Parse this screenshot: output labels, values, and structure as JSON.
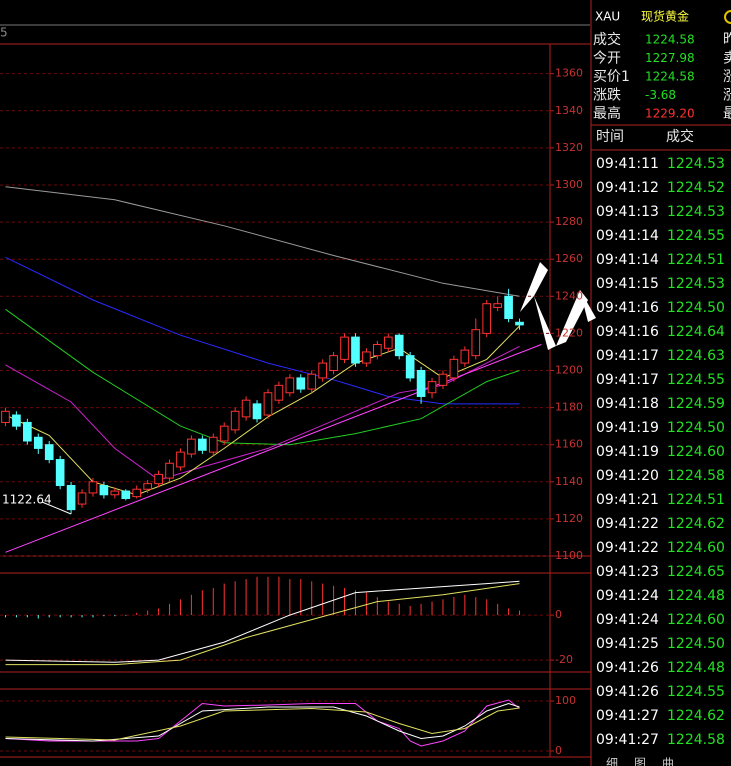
{
  "header": {
    "top_left": "5"
  },
  "chart_data": [
    {
      "type": "candlestick",
      "xlim": [
        -0.5,
        47.5
      ],
      "ylim": [
        1100,
        1376
      ],
      "yticks": [
        1100,
        1120,
        1140,
        1160,
        1180,
        1200,
        1220,
        1240,
        1260,
        1280,
        1300,
        1320,
        1340,
        1360
      ],
      "grid": true,
      "up_color": "#ff3232",
      "down_color": "#54ffff",
      "open": [
        1172,
        1176,
        1172,
        1164,
        1160,
        1152,
        1138,
        1128,
        1134,
        1138,
        1133,
        1135,
        1132,
        1136,
        1139,
        1142,
        1148,
        1155,
        1163,
        1156,
        1162,
        1168,
        1175,
        1182,
        1176,
        1184,
        1188,
        1196,
        1190,
        1196,
        1200,
        1206,
        1218,
        1204,
        1208,
        1212,
        1219,
        1208,
        1200,
        1188,
        1192,
        1196,
        1204,
        1208,
        1220,
        1234,
        1240,
        1226
      ],
      "high": [
        1180,
        1178,
        1174,
        1166,
        1162,
        1154,
        1140,
        1136,
        1142,
        1140,
        1137,
        1136,
        1138,
        1141,
        1146,
        1152,
        1158,
        1165,
        1165,
        1166,
        1172,
        1180,
        1186,
        1184,
        1190,
        1194,
        1198,
        1198,
        1200,
        1206,
        1210,
        1220,
        1220,
        1212,
        1216,
        1220,
        1220,
        1210,
        1202,
        1196,
        1200,
        1208,
        1213,
        1228,
        1238,
        1240,
        1244,
        1228
      ],
      "low": [
        1170,
        1168,
        1160,
        1155,
        1150,
        1136,
        1122.64,
        1126,
        1132,
        1131,
        1131,
        1130,
        1131,
        1134,
        1137,
        1140,
        1146,
        1153,
        1155,
        1154,
        1160,
        1166,
        1173,
        1172,
        1174,
        1182,
        1186,
        1188,
        1188,
        1194,
        1198,
        1204,
        1202,
        1202,
        1206,
        1210,
        1206,
        1194,
        1182,
        1185,
        1190,
        1194,
        1202,
        1206,
        1218,
        1232,
        1226,
        1222
      ],
      "close": [
        1178,
        1170,
        1162,
        1158,
        1152,
        1138,
        1125,
        1134,
        1140,
        1133,
        1135,
        1131,
        1136,
        1139,
        1144,
        1150,
        1156,
        1163,
        1157,
        1164,
        1170,
        1178,
        1184,
        1174,
        1188,
        1192,
        1196,
        1190,
        1198,
        1204,
        1208,
        1218,
        1204,
        1210,
        1214,
        1218,
        1208,
        1196,
        1186,
        1194,
        1198,
        1206,
        1211,
        1222,
        1236,
        1236,
        1228,
        1224.58
      ],
      "annotation": {
        "text": "1122.64",
        "x": 6,
        "y": 1122.64
      },
      "series": [
        {
          "type": "line",
          "color": "#9a9a9a",
          "x": [
            0,
            10,
            20,
            30,
            40,
            47
          ],
          "values": [
            1299,
            1292,
            1278,
            1262,
            1247,
            1240
          ]
        },
        {
          "type": "line",
          "color": "#2a2aff",
          "x": [
            0,
            8,
            16,
            24,
            30,
            35,
            40,
            47
          ],
          "values": [
            1261,
            1238,
            1219,
            1204,
            1195,
            1186,
            1182,
            1182
          ]
        },
        {
          "type": "line",
          "color": "#22cc22",
          "x": [
            0,
            8,
            16,
            20,
            26,
            32,
            38,
            44,
            47
          ],
          "values": [
            1233,
            1199,
            1170,
            1161,
            1160,
            1166,
            1174,
            1194,
            1200
          ]
        },
        {
          "type": "line",
          "color": "#cc22cc",
          "x": [
            0,
            6,
            10,
            14,
            18,
            24,
            30,
            36,
            40,
            47
          ],
          "values": [
            1203,
            1183,
            1158,
            1141,
            1148,
            1158,
            1173,
            1188,
            1192,
            1213
          ]
        },
        {
          "type": "line",
          "color": "#e0e060",
          "x": [
            0,
            4,
            8,
            12,
            16,
            20,
            24,
            28,
            32,
            36,
            40,
            44,
            47
          ],
          "values": [
            1176,
            1165,
            1140,
            1133,
            1142,
            1158,
            1175,
            1188,
            1204,
            1212,
            1196,
            1206,
            1224
          ]
        },
        {
          "type": "line",
          "color": "#ff44ff",
          "x": [
            0,
            49
          ],
          "values": [
            1102,
            1214
          ]
        }
      ]
    },
    {
      "type": "combo",
      "xlim": [
        -0.5,
        47.5
      ],
      "ylim": [
        -24.4,
        17.8
      ],
      "yticks": [
        -20,
        0
      ],
      "grid": true,
      "series": [
        {
          "type": "bar",
          "up_color": "#ff3232",
          "down_color": "#54ffff",
          "x": [
            0,
            1,
            2,
            3,
            4,
            5,
            6,
            7,
            8,
            9,
            10,
            11,
            12,
            13,
            14,
            15,
            16,
            17,
            18,
            19,
            20,
            21,
            22,
            23,
            24,
            25,
            26,
            27,
            28,
            29,
            30,
            31,
            32,
            33,
            34,
            35,
            36,
            37,
            38,
            39,
            40,
            41,
            42,
            43,
            44,
            45,
            46,
            47
          ],
          "values": [
            -1,
            -1,
            -1,
            -1.5,
            -1,
            -1,
            -1,
            -1,
            -1,
            -0.5,
            -0.5,
            -0.3,
            1,
            2,
            3,
            5,
            7,
            9,
            11,
            12,
            14,
            15,
            16,
            17,
            17,
            17,
            16,
            16,
            15,
            14,
            13,
            12,
            11,
            10,
            8,
            6,
            5,
            4,
            5,
            6,
            7,
            8,
            9,
            8,
            7,
            5,
            3,
            2
          ]
        },
        {
          "type": "line",
          "color": "#ffffff",
          "x": [
            0,
            10,
            14,
            20,
            26,
            32,
            38,
            44,
            47
          ],
          "values": [
            -20,
            -21,
            -20,
            -12,
            0,
            10,
            12,
            14,
            15
          ]
        },
        {
          "type": "line",
          "color": "#e0e060",
          "x": [
            0,
            10,
            16,
            22,
            28,
            34,
            40,
            47
          ],
          "values": [
            -22,
            -22,
            -20,
            -10,
            -2,
            6,
            9,
            14
          ]
        }
      ]
    },
    {
      "type": "line",
      "xlim": [
        -0.5,
        47.5
      ],
      "ylim": [
        -2,
        122
      ],
      "yticks": [
        0,
        100
      ],
      "grid": true,
      "series": [
        {
          "type": "line",
          "color": "#ff44ff",
          "x": [
            0,
            4,
            8,
            12,
            14,
            16,
            18,
            20,
            24,
            28,
            32,
            34,
            36,
            37,
            38,
            40,
            42,
            44,
            46,
            47
          ],
          "values": [
            25,
            20,
            20,
            20,
            25,
            60,
            95,
            90,
            92,
            95,
            95,
            60,
            45,
            20,
            10,
            20,
            40,
            90,
            102,
            85
          ]
        },
        {
          "type": "line",
          "color": "#ffffff",
          "x": [
            0,
            8,
            14,
            18,
            24,
            30,
            33,
            36,
            38,
            40,
            42,
            44,
            46,
            47
          ],
          "values": [
            25,
            20,
            30,
            80,
            88,
            88,
            70,
            40,
            25,
            30,
            50,
            80,
            95,
            88
          ]
        },
        {
          "type": "line",
          "color": "#e0e060",
          "x": [
            0,
            10,
            16,
            20,
            28,
            33,
            36,
            39,
            42,
            45,
            47
          ],
          "values": [
            28,
            22,
            50,
            80,
            85,
            78,
            55,
            35,
            45,
            80,
            86
          ]
        }
      ]
    }
  ],
  "quote": {
    "title": "XAU",
    "name": "现货黄金",
    "rows": [
      {
        "label": "成交",
        "value": "1224.58",
        "side": "昨",
        "color": "#22e022"
      },
      {
        "label": "今开",
        "value": "1227.98",
        "side": "卖",
        "color": "#22e022"
      },
      {
        "label": "买价1",
        "value": "1224.58",
        "side": "涨",
        "color": "#22e022"
      },
      {
        "label": "涨跌",
        "value": "-3.68",
        "side": "涨",
        "color": "#22e022"
      },
      {
        "label": "最高",
        "value": "1229.20",
        "side": "最",
        "color": "#ff3232"
      }
    ]
  },
  "ticks": {
    "headers": [
      "时间",
      "成交"
    ],
    "rows": [
      [
        "09:41:11",
        "1224.53"
      ],
      [
        "09:41:12",
        "1224.52"
      ],
      [
        "09:41:13",
        "1224.53"
      ],
      [
        "09:41:14",
        "1224.55"
      ],
      [
        "09:41:14",
        "1224.51"
      ],
      [
        "09:41:15",
        "1224.53"
      ],
      [
        "09:41:16",
        "1224.50"
      ],
      [
        "09:41:16",
        "1224.64"
      ],
      [
        "09:41:17",
        "1224.63"
      ],
      [
        "09:41:17",
        "1224.55"
      ],
      [
        "09:41:18",
        "1224.59"
      ],
      [
        "09:41:19",
        "1224.50"
      ],
      [
        "09:41:19",
        "1224.60"
      ],
      [
        "09:41:20",
        "1224.58"
      ],
      [
        "09:41:21",
        "1224.51"
      ],
      [
        "09:41:22",
        "1224.62"
      ],
      [
        "09:41:22",
        "1224.60"
      ],
      [
        "09:41:23",
        "1224.65"
      ],
      [
        "09:41:24",
        "1224.48"
      ],
      [
        "09:41:24",
        "1224.60"
      ],
      [
        "09:41:25",
        "1224.50"
      ],
      [
        "09:41:26",
        "1224.48"
      ],
      [
        "09:41:26",
        "1224.55"
      ],
      [
        "09:41:27",
        "1224.62"
      ],
      [
        "09:41:27",
        "1224.58"
      ]
    ]
  },
  "tabs": [
    "细",
    "图",
    "曲"
  ]
}
